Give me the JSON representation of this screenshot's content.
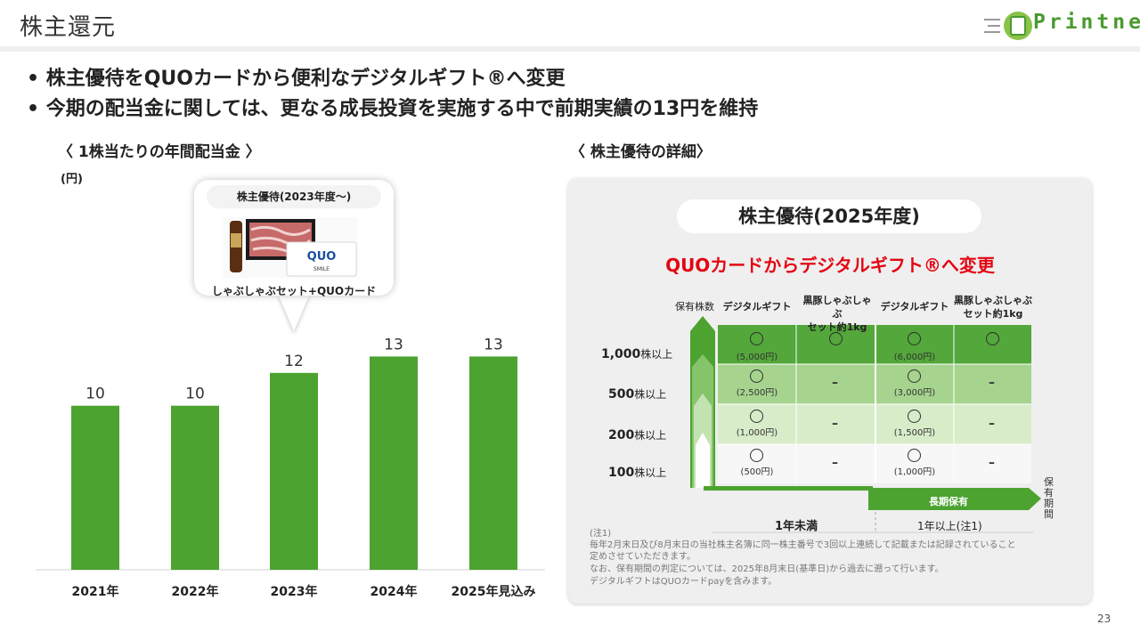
{
  "header": {
    "title": "株主還元",
    "logo_text": "Printnet"
  },
  "bullets": [
    "• 株主優待をQUOカードから便利なデジタルギフト®へ変更",
    "• 今期の配当金に関しては、更なる成長投資を実施する中で前期実績の13円を維持"
  ],
  "left_section": {
    "title": "〈 1株当たりの年間配当金 〉",
    "unit": "(円)"
  },
  "callout": {
    "title": "株主優待(2023年度～)",
    "caption": "しゃぶしゃぶセット+QUOカード",
    "quo_label": "QUO",
    "smile_label": "SMILE"
  },
  "chart_data": {
    "type": "bar",
    "categories": [
      "2021年",
      "2022年",
      "2023年",
      "2024年",
      "2025年見込み"
    ],
    "values": [
      10,
      10,
      12,
      13,
      13
    ],
    "title": "",
    "unit": "(円)",
    "ylim": [
      0,
      14
    ],
    "grid": false,
    "bar_color": "#4ca330"
  },
  "right_section": {
    "title": "〈 株主優待の詳細〉",
    "pill": "株主優待(2025年度)",
    "subtitle": "QUOカードからデジタルギフト®へ変更",
    "holding_label": "保有株数",
    "col_headers": [
      "デジタルギフト",
      "黒豚しゃぶしゃぶ\nセット約1kg",
      "デジタルギフト",
      "黒豚しゃぶしゃぶ\nセット約1kg"
    ],
    "rows": [
      {
        "label": "1,000",
        "suffix": "株以上",
        "c1": "(5,000円)",
        "c2": "○",
        "c3": "(6,000円)",
        "c4": "○"
      },
      {
        "label": "500",
        "suffix": "株以上",
        "c1": "(2,500円)",
        "c2": "–",
        "c3": "(3,000円)",
        "c4": "–"
      },
      {
        "label": "200",
        "suffix": "株以上",
        "c1": "(1,000円)",
        "c2": "–",
        "c3": "(1,500円)",
        "c4": "–"
      },
      {
        "label": "100",
        "suffix": "株以上",
        "c1": "(500円)",
        "c2": "–",
        "c3": "(1,000円)",
        "c4": "–"
      }
    ],
    "long_hold": "長期保有",
    "period_vertical": "保有期間",
    "period_left": "1年未満",
    "period_right": "1年以上(注1)",
    "notes": [
      "(注1)",
      "毎年2月末日及び8月末日の当社株主名簿に同一株主番号で3回以上連続して記載または記録されていること",
      "定めさせていただきます。",
      "なお、保有期間の判定については、2025年8月末日(基準日)から過去に遡って行います。",
      "デジタルギフトはQUOカードpayを含みます。"
    ]
  },
  "page_number": "23",
  "colors": {
    "accent_green": "#4ca330",
    "red": "#e30613"
  }
}
